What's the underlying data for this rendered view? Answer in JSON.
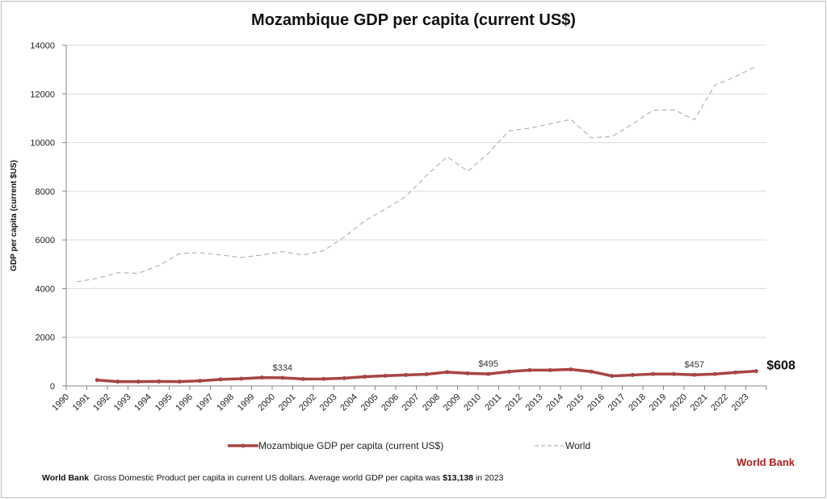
{
  "chart_data": {
    "type": "line",
    "title": "Mozambique GDP per capita (current US$)",
    "ylabel": "GDP per capita (current $US)",
    "xlabel": "",
    "ylim": [
      0,
      14000
    ],
    "yticks": [
      0,
      2000,
      4000,
      6000,
      8000,
      10000,
      12000,
      14000
    ],
    "grid": true,
    "legend_position": "bottom",
    "categories": [
      "1990",
      "1991",
      "1992",
      "1993",
      "1994",
      "1995",
      "1996",
      "1997",
      "1998",
      "1999",
      "2000",
      "2001",
      "2002",
      "2003",
      "2004",
      "2005",
      "2006",
      "2007",
      "2008",
      "2009",
      "2010",
      "2011",
      "2012",
      "2013",
      "2014",
      "2015",
      "2016",
      "2017",
      "2018",
      "2019",
      "2020",
      "2021",
      "2022",
      "2023"
    ],
    "series": [
      {
        "name": "Mozambique GDP per capita (current US$)",
        "color": "#a84545",
        "style": "solid-markers",
        "values": [
          null,
          242,
          180,
          180,
          185,
          180,
          210,
          270,
          300,
          345,
          334,
          285,
          290,
          320,
          380,
          420,
          450,
          480,
          570,
          520,
          495,
          590,
          650,
          650,
          680,
          590,
          410,
          450,
          490,
          490,
          457,
          490,
          555,
          608
        ]
      },
      {
        "name": "World",
        "color": "#a6a6a6",
        "style": "dashed",
        "values": [
          4280,
          4420,
          4650,
          4630,
          4950,
          5440,
          5480,
          5380,
          5280,
          5380,
          5520,
          5380,
          5560,
          6120,
          6790,
          7270,
          7790,
          8650,
          9420,
          8820,
          9560,
          10480,
          10590,
          10770,
          10950,
          10190,
          10250,
          10760,
          11330,
          11350,
          10940,
          12360,
          12710,
          13138
        ]
      }
    ],
    "annotations": [
      {
        "category": "2000",
        "text": "$334"
      },
      {
        "category": "2010",
        "text": "$495"
      },
      {
        "category": "2020",
        "text": "$457"
      },
      {
        "category": "2023",
        "text": "$608"
      }
    ]
  },
  "source_label": "World Bank",
  "footer": {
    "source": "World Bank",
    "text": "Gross Domestic Product per capita in current US dollars.  Average world GDP per capita was ",
    "highlight": "$13,138",
    "suffix": " in 2023"
  }
}
